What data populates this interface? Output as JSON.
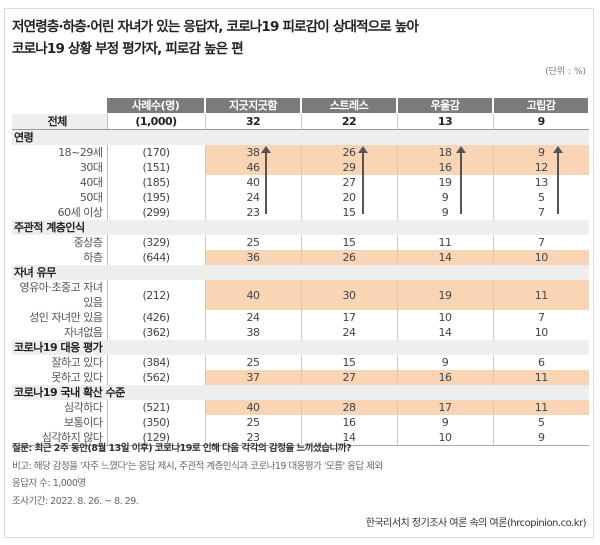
{
  "title": [
    "저연령층·하층·어린 자녀가 있는 응답자,  코로나19 피로감이 상대적으로 높아",
    "코로나19 상황 부정 평가자, 피로감 높은 편"
  ],
  "unit": "(단위 : %)",
  "highlight_color": "#f9d4b5",
  "table": {
    "headers": [
      "",
      "사례수(명)",
      "지긋지긋함",
      "스트레스",
      "우울감",
      "고립감"
    ],
    "total": {
      "label": "전체",
      "count": "(1,000)",
      "values": [
        "32",
        "22",
        "13",
        "9"
      ]
    },
    "sections": [
      {
        "title": "연령",
        "rows": [
          {
            "label": "18~29세",
            "count": "(170)",
            "values": [
              "38",
              "26",
              "18",
              "9"
            ],
            "highlight": true
          },
          {
            "label": "30대",
            "count": "(151)",
            "values": [
              "46",
              "29",
              "16",
              "12"
            ],
            "highlight": true
          },
          {
            "label": "40대",
            "count": "(185)",
            "values": [
              "40",
              "27",
              "19",
              "13"
            ],
            "highlight": false
          },
          {
            "label": "50대",
            "count": "(195)",
            "values": [
              "24",
              "20",
              "9",
              "5"
            ],
            "highlight": false
          },
          {
            "label": "60세 이상",
            "count": "(299)",
            "values": [
              "23",
              "15",
              "9",
              "7"
            ],
            "highlight": false
          }
        ]
      },
      {
        "title": "주관적 계층인식",
        "rows": [
          {
            "label": "중상층",
            "count": "(329)",
            "values": [
              "25",
              "15",
              "11",
              "7"
            ],
            "highlight": false
          },
          {
            "label": "하층",
            "count": "(644)",
            "values": [
              "36",
              "26",
              "14",
              "10"
            ],
            "highlight": true
          }
        ]
      },
      {
        "title": "자녀 유무",
        "rows": [
          {
            "label": "영유아·초중고 자녀 있음",
            "count": "(212)",
            "values": [
              "40",
              "30",
              "19",
              "11"
            ],
            "highlight": true
          },
          {
            "label": "성인 자녀만 있음",
            "count": "(426)",
            "values": [
              "24",
              "17",
              "10",
              "7"
            ],
            "highlight": false
          },
          {
            "label": "자녀없음",
            "count": "(362)",
            "values": [
              "38",
              "24",
              "14",
              "10"
            ],
            "highlight": false
          }
        ]
      },
      {
        "title": "코로나19 대응 평가",
        "rows": [
          {
            "label": "잘하고 있다",
            "count": "(384)",
            "values": [
              "25",
              "15",
              "9",
              "6"
            ],
            "highlight": false
          },
          {
            "label": "못하고 있다",
            "count": "(562)",
            "values": [
              "37",
              "27",
              "16",
              "11"
            ],
            "highlight": true
          }
        ]
      },
      {
        "title": "코로나19 국내 확산 수준",
        "rows": [
          {
            "label": "심각하다",
            "count": "(521)",
            "values": [
              "40",
              "28",
              "17",
              "11"
            ],
            "highlight": true
          },
          {
            "label": "보통이다",
            "count": "(350)",
            "values": [
              "25",
              "16",
              "9",
              "5"
            ],
            "highlight": false
          },
          {
            "label": "심각하지 않다",
            "count": "(129)",
            "values": [
              "23",
              "14",
              "10",
              "9"
            ],
            "highlight": false
          }
        ]
      }
    ]
  },
  "notes": {
    "question": "질문: 최근 2주 동안(8월 13일 이후) 코로나19로 인해 다음 각각의 감정을 느끼셨습니까?",
    "remark": "비고: 해당 감정을 '자주 느꼈다'는 응답 제시, 주관적 계층인식과 코로나19 대응평가 '모름' 응답 제외",
    "respondents": "응답자 수: 1,000명",
    "period": "조사기간: 2022. 8. 26. ~ 8. 29."
  },
  "source": "한국리서치 정기조사 여론 속의 여론(hrcopinion.co.kr)"
}
